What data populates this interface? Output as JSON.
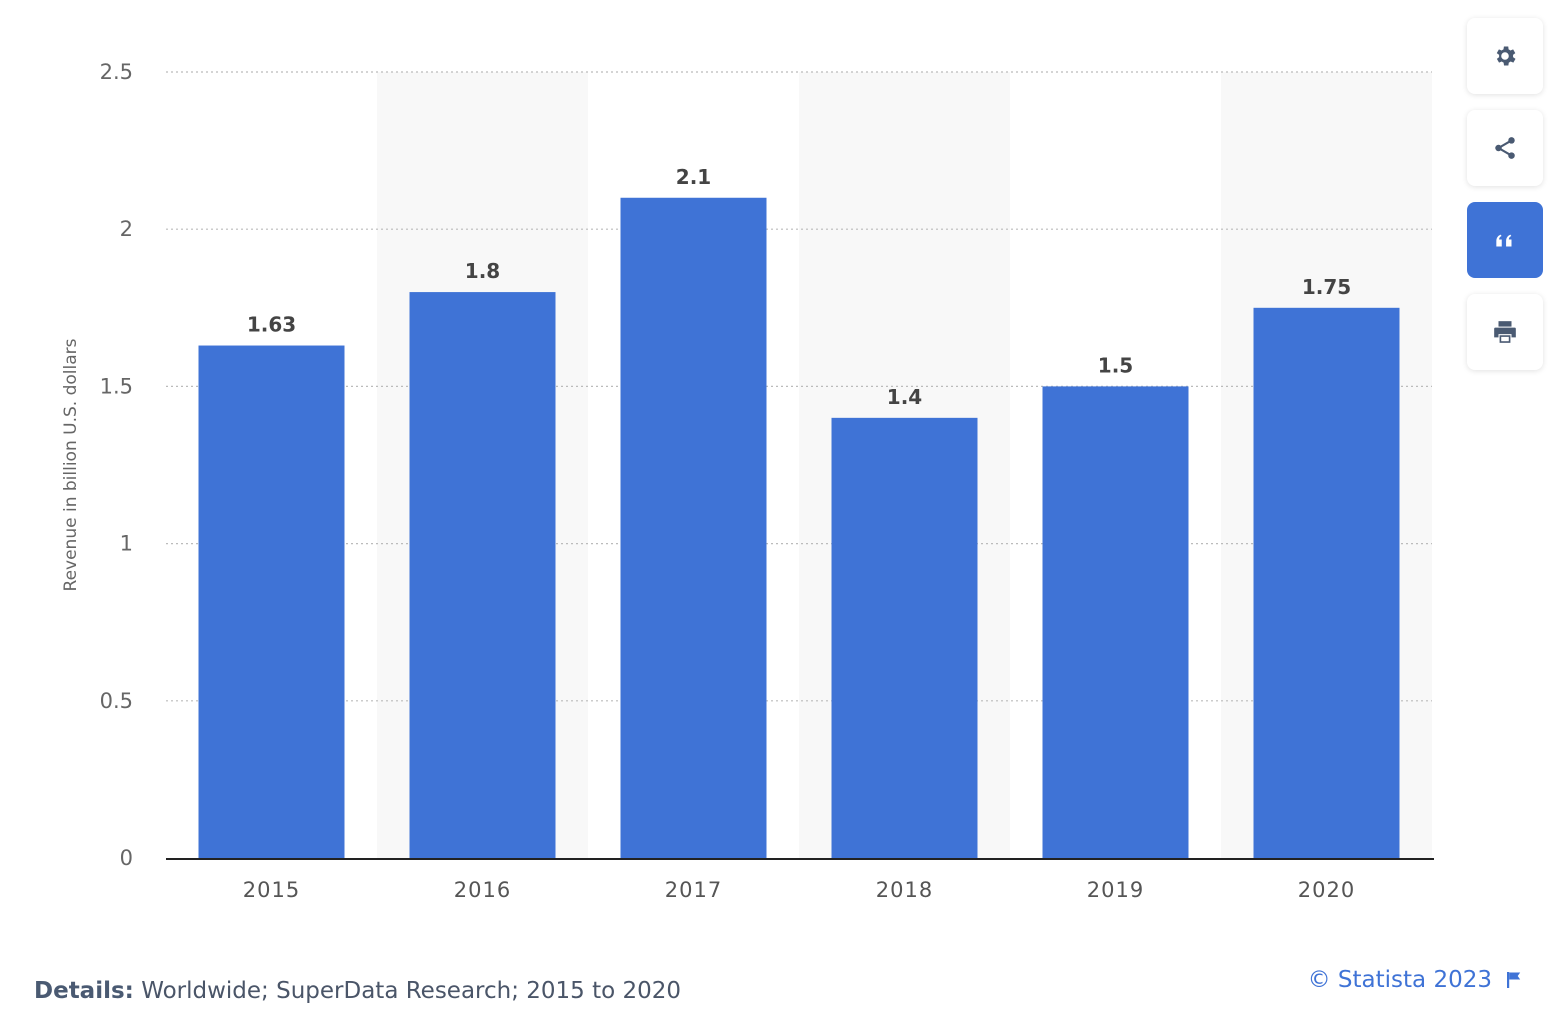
{
  "chart_data": {
    "type": "bar",
    "categories": [
      "2015",
      "2016",
      "2017",
      "2018",
      "2019",
      "2020"
    ],
    "values": [
      1.63,
      1.8,
      2.1,
      1.4,
      1.5,
      1.75
    ],
    "data_labels": [
      "1.63",
      "1.8",
      "2.1",
      "1.4",
      "1.5",
      "1.75"
    ],
    "title": "",
    "xlabel": "",
    "ylabel": "Revenue in billion U.S. dollars",
    "ylim": [
      0,
      2.5
    ],
    "yticks": [
      0,
      0.5,
      1,
      1.5,
      2,
      2.5
    ],
    "ytick_labels": [
      "0",
      "0.5",
      "1",
      "1.5",
      "2",
      "2.5"
    ],
    "grid": true,
    "bar_color": "#3f73d6",
    "alt_band_color": "#f8f8f8"
  },
  "toolbar": {
    "settings_icon": "gear-icon",
    "share_icon": "share-icon",
    "cite_icon": "quote-icon",
    "print_icon": "print-icon",
    "accent": "#3f73d6"
  },
  "footer": {
    "details_label": "Details:",
    "details_text": "Worldwide; SuperData Research; 2015 to 2020",
    "copyright": "© Statista 2023",
    "flag_icon": "flag-icon"
  }
}
